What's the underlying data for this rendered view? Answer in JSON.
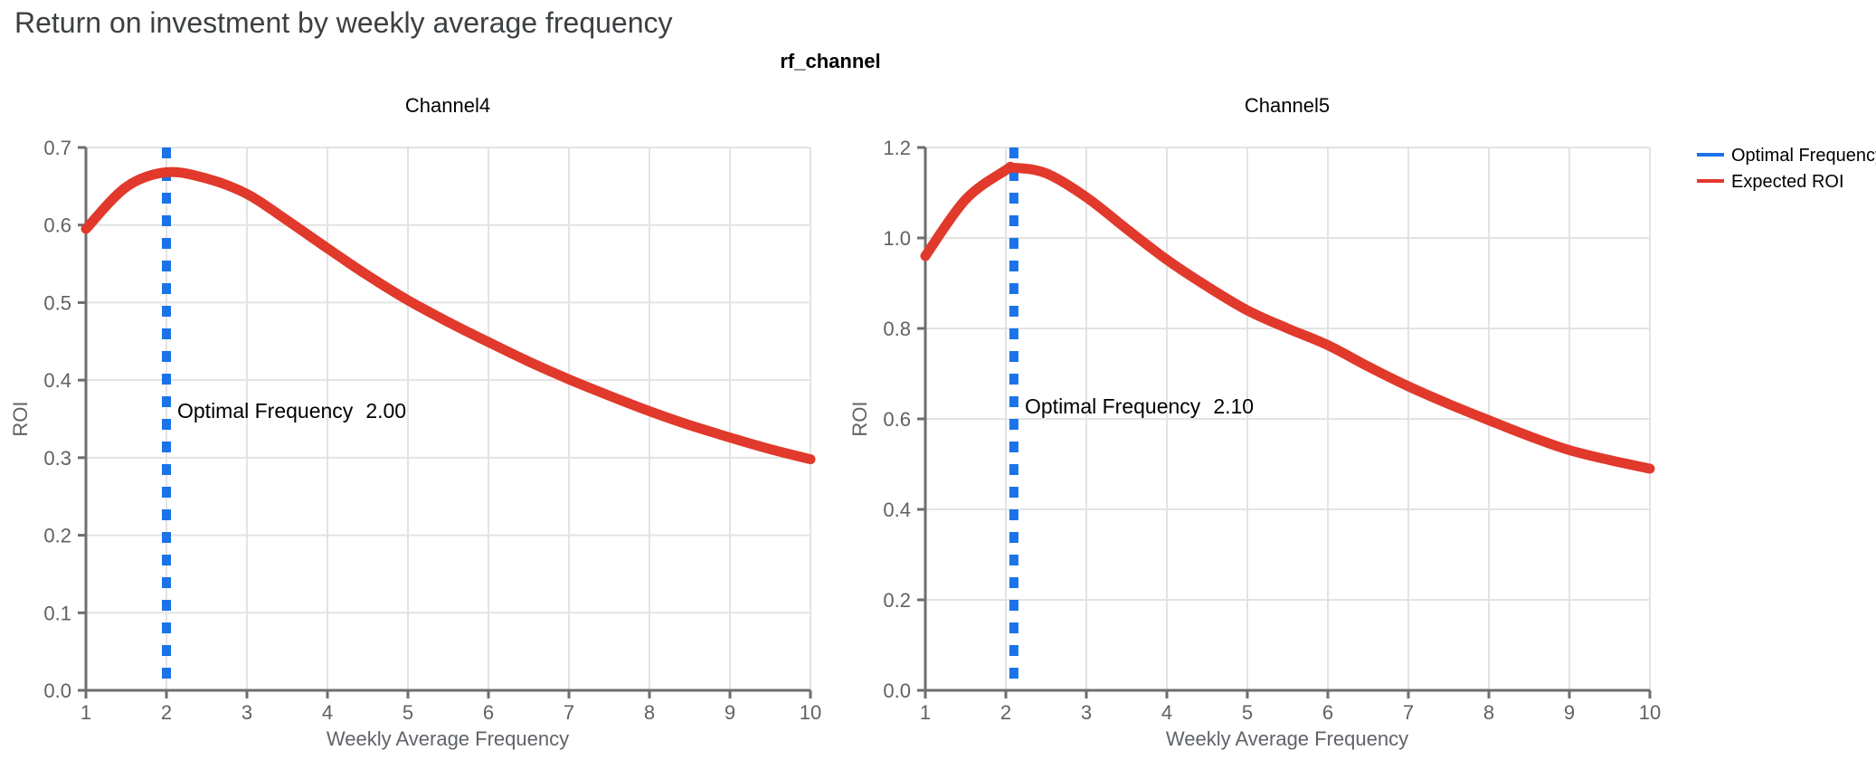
{
  "page_title": "Return on investment by weekly average frequency",
  "facet_title": "rf_channel",
  "legend": {
    "items": [
      {
        "label": "Optimal Frequency",
        "color": "#1a73e8"
      },
      {
        "label": "Expected ROI",
        "color": "#e1392b"
      }
    ]
  },
  "colors": {
    "optimal": "#1a73e8",
    "roi": "#e1392b",
    "grid": "#e3e3e3",
    "axis": "#6e6e6e",
    "tick_text": "#616161",
    "axis_title_text": "#5f6368",
    "title_text": "#3c4043"
  },
  "chart_data": [
    {
      "type": "line",
      "title": "Channel4",
      "xlabel": "Weekly Average Frequency",
      "ylabel": "ROI",
      "xlim": [
        1,
        10
      ],
      "ylim": [
        0,
        0.7
      ],
      "xticks": [
        1,
        2,
        3,
        4,
        5,
        6,
        7,
        8,
        9,
        10
      ],
      "yticks": [
        0,
        0.1,
        0.2,
        0.3,
        0.4,
        0.5,
        0.6,
        0.7
      ],
      "grid": true,
      "legend_position": "outside-top-right",
      "optimal_frequency": {
        "label": "Optimal Frequency",
        "value": "2.00",
        "x": 2.0
      },
      "series": [
        {
          "name": "Expected ROI",
          "x": [
            1,
            1.5,
            2,
            2.5,
            3,
            3.5,
            4,
            4.5,
            5,
            5.5,
            6,
            6.5,
            7,
            7.5,
            8,
            8.5,
            9,
            9.5,
            10
          ],
          "y": [
            0.595,
            0.649,
            0.668,
            0.66,
            0.64,
            0.606,
            0.57,
            0.535,
            0.503,
            0.475,
            0.449,
            0.424,
            0.401,
            0.38,
            0.36,
            0.342,
            0.326,
            0.311,
            0.298
          ]
        }
      ]
    },
    {
      "type": "line",
      "title": "Channel5",
      "xlabel": "Weekly Average Frequency",
      "ylabel": "ROI",
      "xlim": [
        1,
        10
      ],
      "ylim": [
        0,
        1.2
      ],
      "xticks": [
        1,
        2,
        3,
        4,
        5,
        6,
        7,
        8,
        9,
        10
      ],
      "yticks": [
        0,
        0.2,
        0.4,
        0.6,
        0.8,
        1.0,
        1.2
      ],
      "grid": true,
      "legend_position": "outside-top-right",
      "optimal_frequency": {
        "label": "Optimal Frequency",
        "value": "2.10",
        "x": 2.1
      },
      "series": [
        {
          "name": "Expected ROI",
          "x": [
            1,
            1.5,
            2,
            2.1,
            2.5,
            3,
            3.5,
            4,
            4.5,
            5,
            5.5,
            6,
            6.5,
            7,
            7.5,
            8,
            8.5,
            9,
            9.5,
            10
          ],
          "y": [
            0.96,
            1.085,
            1.15,
            1.155,
            1.143,
            1.09,
            1.02,
            0.952,
            0.893,
            0.84,
            0.8,
            0.763,
            0.716,
            0.672,
            0.633,
            0.597,
            0.562,
            0.531,
            0.509,
            0.49
          ]
        }
      ]
    }
  ]
}
